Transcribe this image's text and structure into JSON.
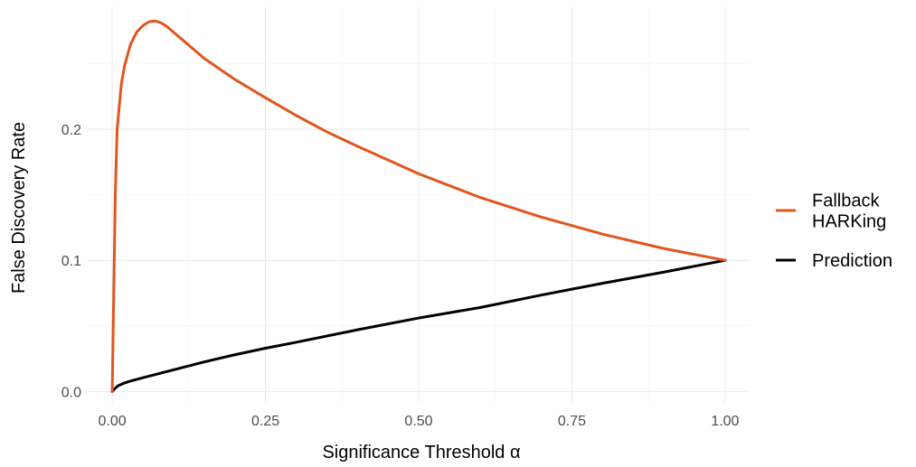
{
  "chart_data": {
    "type": "line",
    "xlabel": "Significance Threshold α",
    "ylabel": "False Discovery Rate",
    "xlim": [
      -0.04,
      1.04
    ],
    "ylim": [
      -0.008,
      0.293
    ],
    "x_ticks": [
      0.0,
      0.25,
      0.5,
      0.75,
      1.0
    ],
    "x_tick_labels": [
      "0.00",
      "0.25",
      "0.50",
      "0.75",
      "1.00"
    ],
    "y_ticks": [
      0.0,
      0.1,
      0.2
    ],
    "y_tick_labels": [
      "0.0",
      "0.1",
      "0.2"
    ],
    "grid": true,
    "legend_position": "right",
    "series": [
      {
        "name": "Fallback\nHARKing",
        "color": "#E1561E",
        "x": [
          0.0,
          0.003,
          0.005,
          0.008,
          0.01,
          0.015,
          0.02,
          0.03,
          0.04,
          0.05,
          0.06,
          0.07,
          0.08,
          0.09,
          0.1,
          0.12,
          0.15,
          0.2,
          0.25,
          0.3,
          0.35,
          0.4,
          0.5,
          0.6,
          0.7,
          0.8,
          0.9,
          1.0
        ],
        "y": [
          0.0,
          0.09,
          0.15,
          0.2,
          0.21,
          0.235,
          0.248,
          0.265,
          0.274,
          0.279,
          0.282,
          0.2825,
          0.281,
          0.278,
          0.274,
          0.266,
          0.254,
          0.238,
          0.224,
          0.2105,
          0.198,
          0.187,
          0.166,
          0.148,
          0.133,
          0.12,
          0.109,
          0.1
        ]
      },
      {
        "name": "Prediction",
        "color": "#000000",
        "x": [
          0.0,
          0.005,
          0.01,
          0.02,
          0.03,
          0.05,
          0.075,
          0.1,
          0.15,
          0.2,
          0.25,
          0.3,
          0.4,
          0.5,
          0.6,
          0.7,
          0.8,
          0.9,
          1.0
        ],
        "y": [
          0.0,
          0.0025,
          0.0045,
          0.0065,
          0.008,
          0.0105,
          0.0135,
          0.0165,
          0.0225,
          0.028,
          0.033,
          0.0375,
          0.047,
          0.056,
          0.064,
          0.0735,
          0.0825,
          0.091,
          0.1
        ]
      }
    ]
  }
}
